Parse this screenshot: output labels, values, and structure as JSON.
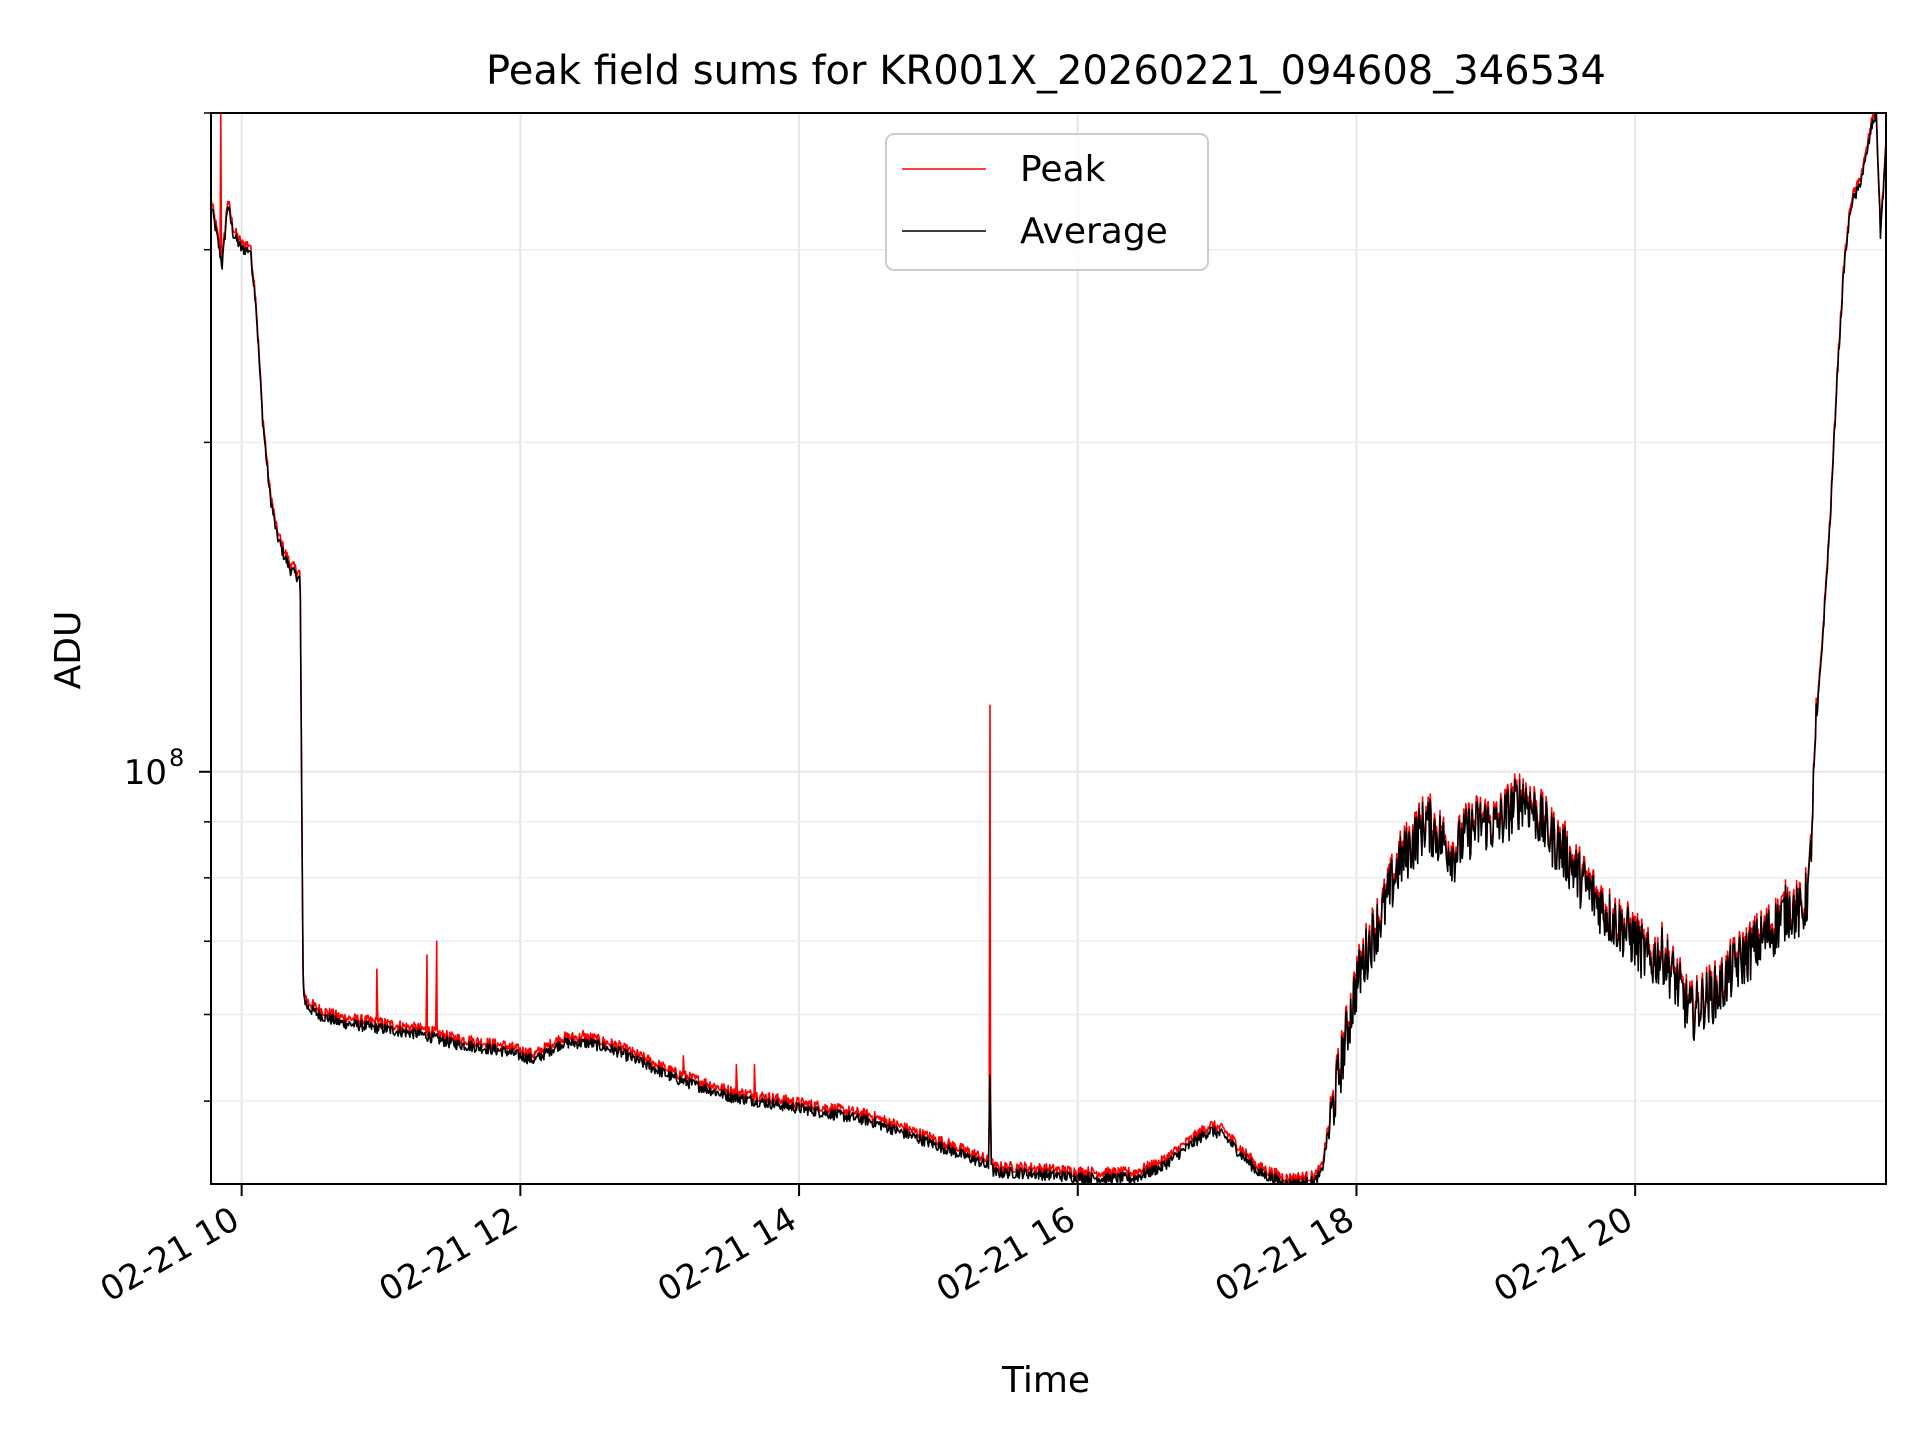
{
  "chart_data": {
    "type": "line",
    "title": "Peak field sums for KR001X_20260221_094608_346534",
    "xlabel": "Time",
    "ylabel": "ADU",
    "x_unit": "hours since 2026-02-21 00:00",
    "xlim": [
      9.78,
      21.8
    ],
    "ylim": [
      42000000,
      400000000
    ],
    "y_scale": "log",
    "grid": true,
    "legend_position": "top-center",
    "x_ticks": [
      {
        "value": 10,
        "label": "02-21 10"
      },
      {
        "value": 12,
        "label": "02-21 12"
      },
      {
        "value": 14,
        "label": "02-21 14"
      },
      {
        "value": 16,
        "label": "02-21 16"
      },
      {
        "value": 18,
        "label": "02-21 18"
      },
      {
        "value": 20,
        "label": "02-21 20"
      }
    ],
    "y_major_ticks": [
      {
        "value": 100000000,
        "base": "10",
        "exp": "8"
      }
    ],
    "y_minor_ticks": [
      50000000,
      60000000,
      70000000,
      80000000,
      90000000,
      200000000,
      300000000,
      400000000
    ],
    "series": [
      {
        "name": "Peak",
        "color": "#ff0000",
        "note": "Tracks the average curve closely, with sharp spikes at the listed times",
        "spikes": [
          {
            "x": 9.85,
            "y": 400000000
          },
          {
            "x": 10.97,
            "y": 66000000
          },
          {
            "x": 11.33,
            "y": 68000000
          },
          {
            "x": 11.4,
            "y": 70000000
          },
          {
            "x": 12.45,
            "y": 58000000
          },
          {
            "x": 13.17,
            "y": 55000000
          },
          {
            "x": 13.55,
            "y": 54000000
          },
          {
            "x": 13.68,
            "y": 54000000
          },
          {
            "x": 15.37,
            "y": 115000000
          }
        ]
      },
      {
        "name": "Average",
        "color": "#000000",
        "x": [
          9.78,
          9.82,
          9.86,
          9.9,
          9.94,
          10.0,
          10.06,
          10.1,
          10.15,
          10.2,
          10.25,
          10.3,
          10.35,
          10.42,
          10.44,
          10.45,
          10.47,
          10.55,
          10.7,
          10.9,
          11.1,
          11.3,
          11.5,
          11.7,
          11.9,
          12.1,
          12.2,
          12.3,
          12.5,
          12.7,
          12.9,
          13.1,
          13.3,
          13.5,
          13.7,
          13.9,
          14.1,
          14.3,
          14.5,
          14.7,
          14.9,
          15.1,
          15.3,
          15.36,
          15.37,
          15.38,
          15.4,
          15.6,
          15.8,
          16.0,
          16.2,
          16.4,
          16.6,
          16.8,
          16.95,
          17.05,
          17.15,
          17.3,
          17.5,
          17.7,
          17.75,
          17.8,
          17.9,
          18.0,
          18.1,
          18.2,
          18.3,
          18.5,
          18.6,
          18.7,
          18.8,
          18.9,
          19.0,
          19.1,
          19.2,
          19.3,
          19.4,
          19.5,
          19.6,
          19.7,
          19.8,
          19.9,
          20.0,
          20.1,
          20.2,
          20.3,
          20.4,
          20.5,
          20.6,
          20.7,
          20.8,
          20.9,
          21.0,
          21.1,
          21.2,
          21.25,
          21.3,
          21.35,
          21.4,
          21.45,
          21.5,
          21.55,
          21.6,
          21.65,
          21.7,
          21.73,
          21.76,
          21.8
        ],
        "values": [
          330000000,
          310000000,
          290000000,
          330000000,
          310000000,
          300000000,
          300000000,
          270000000,
          210000000,
          180000000,
          165000000,
          158000000,
          153000000,
          150000000,
          65000000,
          62000000,
          61000000,
          60000000,
          59000000,
          58500000,
          58000000,
          57500000,
          56500000,
          56000000,
          55500000,
          54500000,
          55500000,
          56500000,
          56500000,
          55500000,
          54000000,
          52500000,
          51500000,
          50500000,
          50000000,
          49500000,
          49000000,
          48500000,
          48000000,
          47000000,
          46000000,
          45000000,
          44000000,
          43500000,
          54000000,
          43500000,
          43000000,
          43000000,
          42800000,
          42600000,
          42500000,
          42500000,
          43500000,
          45500000,
          47000000,
          46500000,
          45000000,
          43000000,
          42000000,
          42200000,
          43000000,
          47000000,
          55000000,
          64000000,
          70000000,
          75000000,
          82000000,
          90000000,
          87000000,
          84000000,
          88000000,
          90000000,
          89000000,
          92000000,
          95000000,
          91000000,
          87000000,
          84000000,
          80000000,
          77000000,
          74000000,
          72000000,
          70000000,
          67000000,
          68000000,
          64000000,
          60000000,
          62000000,
          63000000,
          66000000,
          68000000,
          70000000,
          72000000,
          75000000,
          74000000,
          79000000,
          110000000,
          135000000,
          170000000,
          230000000,
          290000000,
          330000000,
          340000000,
          360000000,
          390000000,
          400000000,
          310000000,
          370000000
        ]
      }
    ]
  }
}
